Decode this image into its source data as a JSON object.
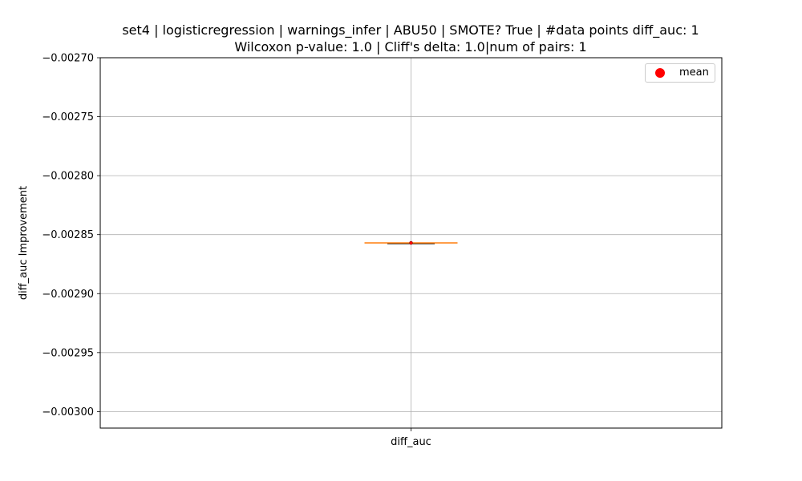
{
  "chart_data": {
    "type": "box",
    "title": "set4 | logisticregression | warnings_infer | ABU50 | SMOTE? True | #data points diff_auc: 1",
    "subtitle": "Wilcoxon p-value: 1.0 | Cliff's delta: 1.0|num of pairs: 1",
    "xlabel": "",
    "ylabel": "diff_auc Improvement",
    "categories": [
      "diff_auc"
    ],
    "boxes": [
      {
        "category": "diff_auc",
        "min": -0.002857,
        "q1": -0.002857,
        "median": -0.002857,
        "q3": -0.002857,
        "max": -0.002857,
        "mean": -0.002857
      }
    ],
    "ylim": [
      -0.003014,
      -0.0027
    ],
    "yticks": [
      -0.0027,
      -0.00275,
      -0.0028,
      -0.00285,
      -0.0029,
      -0.00295,
      -0.003
    ],
    "ytick_labels": [
      "−0.00270",
      "−0.00275",
      "−0.00280",
      "−0.00285",
      "−0.00290",
      "−0.00295",
      "−0.00300"
    ],
    "grid": true,
    "legend": {
      "placement": "top-right",
      "entries": [
        {
          "label": "mean",
          "color": "#ff0000"
        }
      ]
    },
    "colors": {
      "median": "#ff7f0e",
      "mean": "#ff0000",
      "grid": "#b0b0b0"
    }
  }
}
